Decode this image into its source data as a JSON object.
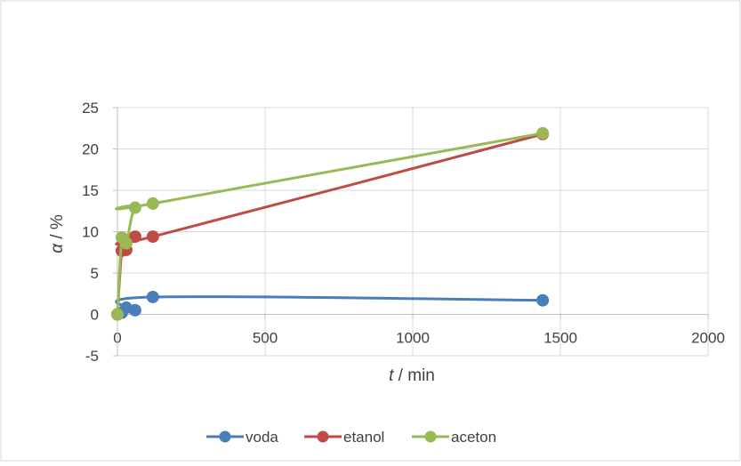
{
  "chart_data": {
    "type": "line",
    "title": "",
    "xlabel": {
      "var": "t",
      "unit": " / min"
    },
    "ylabel": {
      "var": "α",
      "unit": " / %"
    },
    "xlim": [
      0,
      2000
    ],
    "ylim": [
      -5,
      25
    ],
    "xticks": [
      0,
      500,
      1000,
      1500,
      2000
    ],
    "yticks": [
      -5,
      0,
      5,
      10,
      15,
      20,
      25
    ],
    "grid": "vertical and horizontal major gridlines",
    "legend": "bottom-center",
    "series": [
      {
        "name": "voda",
        "color": "#4a7ebb",
        "points": [
          [
            0,
            0
          ],
          [
            15,
            0.2
          ],
          [
            30,
            0.8
          ],
          [
            60,
            0.5
          ],
          [
            120,
            2.1
          ],
          [
            1440,
            1.7
          ]
        ]
      },
      {
        "name": "etanol",
        "color": "#be4b48",
        "points": [
          [
            0,
            0
          ],
          [
            15,
            7.7
          ],
          [
            30,
            7.8
          ],
          [
            60,
            9.4
          ],
          [
            120,
            9.4
          ],
          [
            1440,
            21.8
          ]
        ]
      },
      {
        "name": "aceton",
        "color": "#98b954",
        "points": [
          [
            0,
            0
          ],
          [
            15,
            9.3
          ],
          [
            30,
            8.6
          ],
          [
            60,
            12.9
          ],
          [
            120,
            13.4
          ],
          [
            1440,
            21.9
          ]
        ]
      }
    ]
  }
}
